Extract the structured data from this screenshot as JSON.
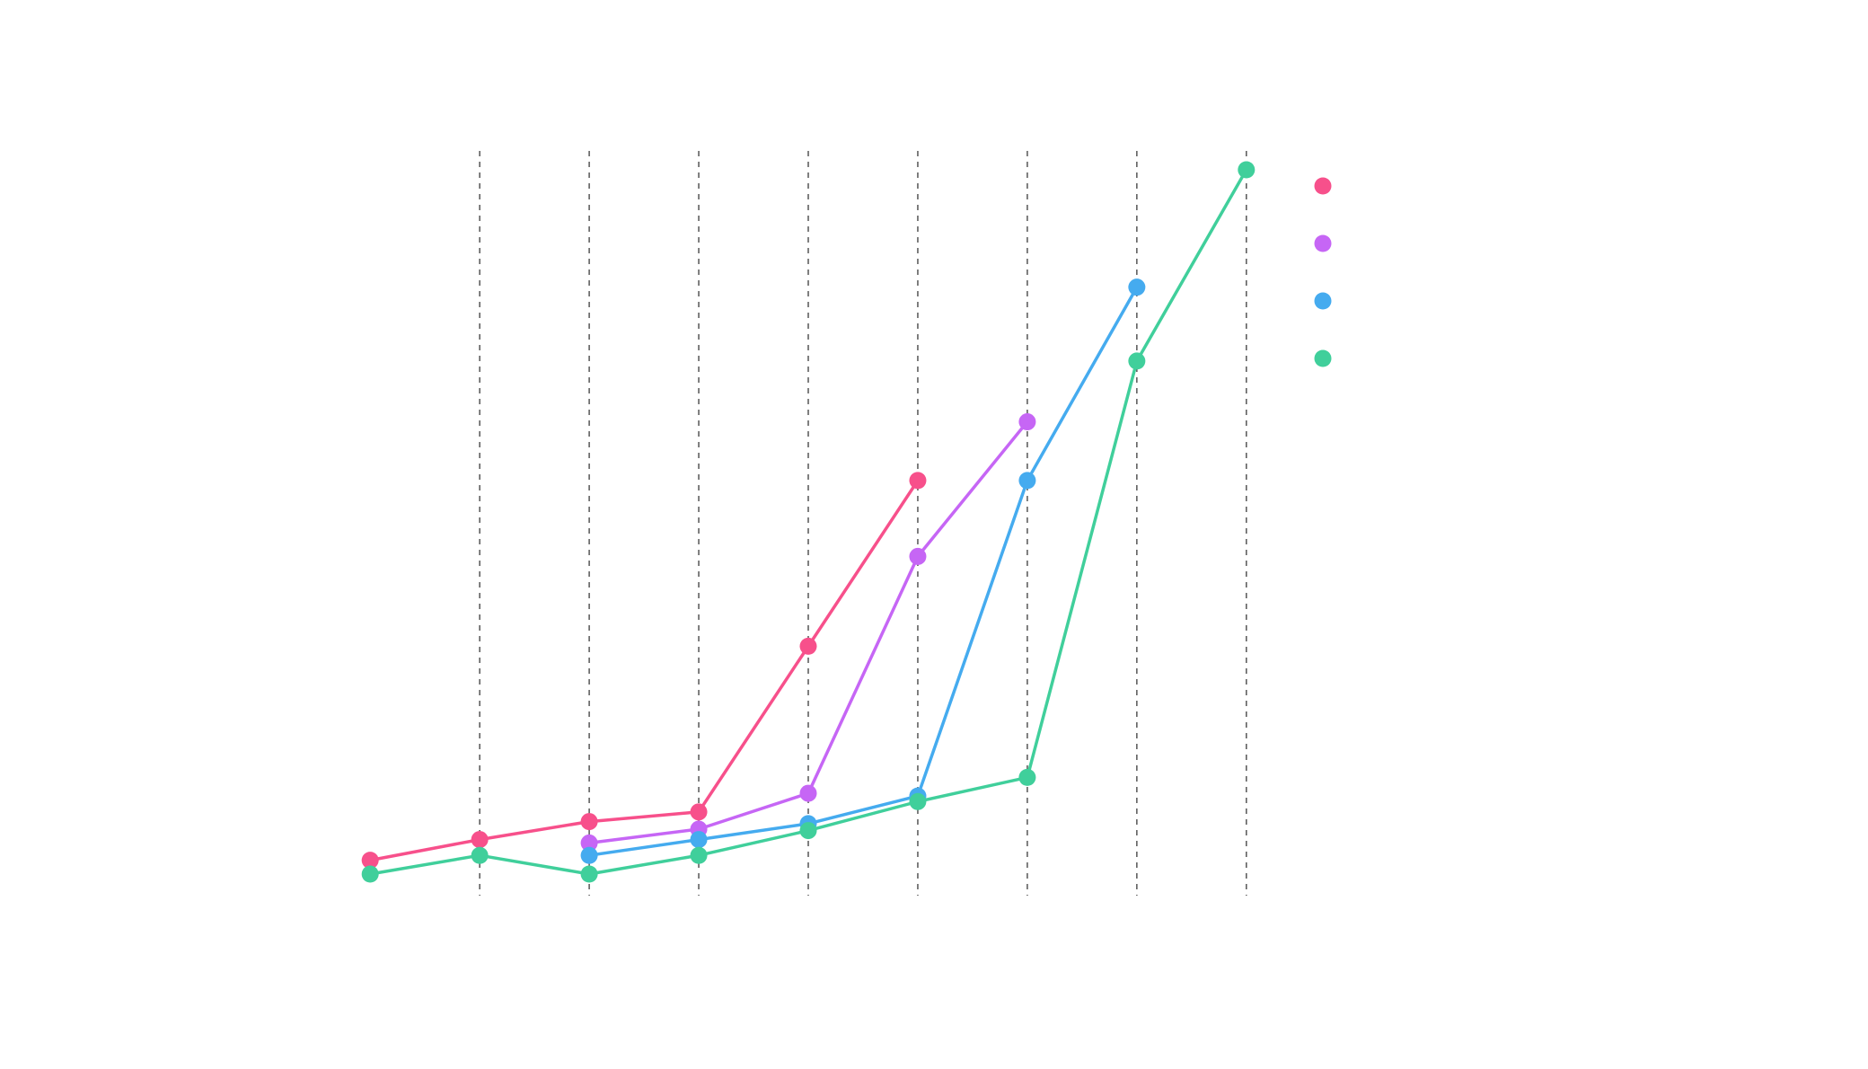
{
  "chart_data": {
    "type": "line",
    "title": "",
    "xlabel": "",
    "ylabel": "",
    "x": [
      1,
      2,
      3,
      4,
      5,
      6,
      7,
      8,
      9
    ],
    "xlim": [
      0.9,
      9.1
    ],
    "ylim": [
      -0.2,
      10.5
    ],
    "grid": {
      "vertical_dashed_at": [
        2,
        3,
        4,
        5,
        6,
        7,
        8,
        9
      ],
      "horizontal": false
    },
    "legend": {
      "position": "right",
      "labels_visible": false
    },
    "series": [
      {
        "color": "#f7508b",
        "points": [
          [
            1,
            0.2
          ],
          [
            2,
            0.5
          ],
          [
            3,
            0.76
          ],
          [
            4,
            0.9
          ],
          [
            5,
            3.3
          ],
          [
            6,
            5.7
          ]
        ]
      },
      {
        "color": "#c666f5",
        "points": [
          [
            3,
            0.45
          ],
          [
            4,
            0.65
          ],
          [
            5,
            1.17
          ],
          [
            6,
            4.6
          ],
          [
            7,
            6.55
          ]
        ]
      },
      {
        "color": "#45abef",
        "points": [
          [
            3,
            0.27
          ],
          [
            4,
            0.5
          ],
          [
            5,
            0.73
          ],
          [
            6,
            1.13
          ],
          [
            7,
            5.7
          ],
          [
            8,
            8.5
          ]
        ]
      },
      {
        "color": "#40cf9b",
        "points": [
          [
            1,
            0.0
          ],
          [
            2,
            0.27
          ],
          [
            3,
            0.0
          ],
          [
            4,
            0.27
          ],
          [
            5,
            0.63
          ],
          [
            6,
            1.05
          ],
          [
            7,
            1.4
          ],
          [
            8,
            7.43
          ],
          [
            9,
            10.2
          ]
        ]
      }
    ]
  }
}
